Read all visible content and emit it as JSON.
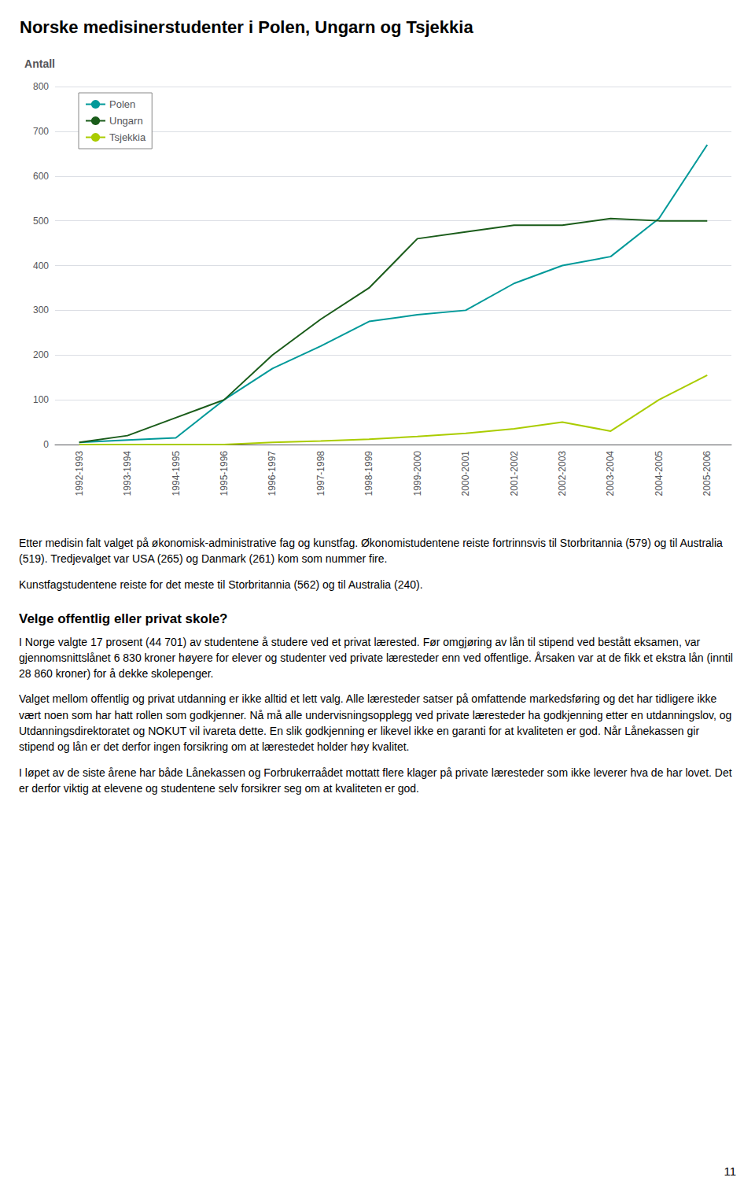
{
  "chart_data": {
    "type": "line",
    "title": "Norske medisinerstudenter i Polen, Ungarn og Tsjekkia",
    "y_label": "Antall",
    "categories": [
      "1992-1993",
      "1993-1994",
      "1994-1995",
      "1995-1996",
      "1996-1997",
      "1997-1998",
      "1998-1999",
      "1999-2000",
      "2000-2001",
      "2001-2002",
      "2002-2003",
      "2003-2004",
      "2004-2005",
      "2005-2006"
    ],
    "series": [
      {
        "name": "Polen",
        "color": "#009999",
        "values": [
          5,
          10,
          15,
          100,
          170,
          220,
          275,
          290,
          300,
          360,
          400,
          420,
          505,
          670
        ]
      },
      {
        "name": "Ungarn",
        "color": "#1a5c1a",
        "values": [
          5,
          20,
          60,
          100,
          200,
          280,
          350,
          460,
          475,
          490,
          490,
          505,
          500,
          500
        ]
      },
      {
        "name": "Tsjekkia",
        "color": "#aacc00",
        "values": [
          0,
          0,
          0,
          0,
          5,
          8,
          12,
          18,
          25,
          35,
          50,
          30,
          100,
          155
        ]
      }
    ],
    "ylim": [
      0,
      800
    ],
    "yticks": [
      0,
      100,
      200,
      300,
      400,
      500,
      600,
      700,
      800
    ],
    "grid": true,
    "legend": "upper left",
    "annotations": [
      "Etter medisin falt valget på økonomisk-administrative fag og kunstfag. Økonomistudentene reiste fortrinnsvis til Storbritannia (579) og til Australia (519). Tredjevalget var USA (265) og Danmark (261) kom som nummer fire.",
      "Kunstfagstudentene reiste for det meste til Storbritannia (562) og til Australia (240).",
      "Velge offentlig eller privat skole?",
      "I Norge valgte 17 prosent (44 701) av studentene å studere ved et privat lærested. Før omgjøring av lån til stipend ved bestått eksamen, var gjennomsnittslånet 6 830 kroner høyere for elever og studenter ved private læresteder enn ved offentlige. Årsaken var at de fikk et ekstra lån (inntil 28 860 kroner) for å dekke skolepenger.",
      "Valget mellom offentlig og privat utdanning er ikke alltid et lett valg. Alle læresteder satser på omfattende markedsføring og det har tidligere ikke vært noen som har hatt rollen som godkjenner. Nå må alle undervisningsopplegg ved private læresteder ha godkjenning etter en utdanningslov, og Utdanningsdirektoratet og NOKUT vil ivareta dette. En slik godkjenning  er likevel ikke en garanti for at kvaliteten er god. Når Lånekassen gir stipend og lån er det derfor ingen forsikring om at lærestedet holder høy kvalitet.",
      "I løpet av de siste årene har både Lånekassen og Forbrukerraådet mottatt flere klager på private læresteder som ikke leverer hva de har lovet. Det er derfor viktig at elevene og studentene selv forsikrer seg om at kvaliteten er god.",
      "11"
    ]
  }
}
